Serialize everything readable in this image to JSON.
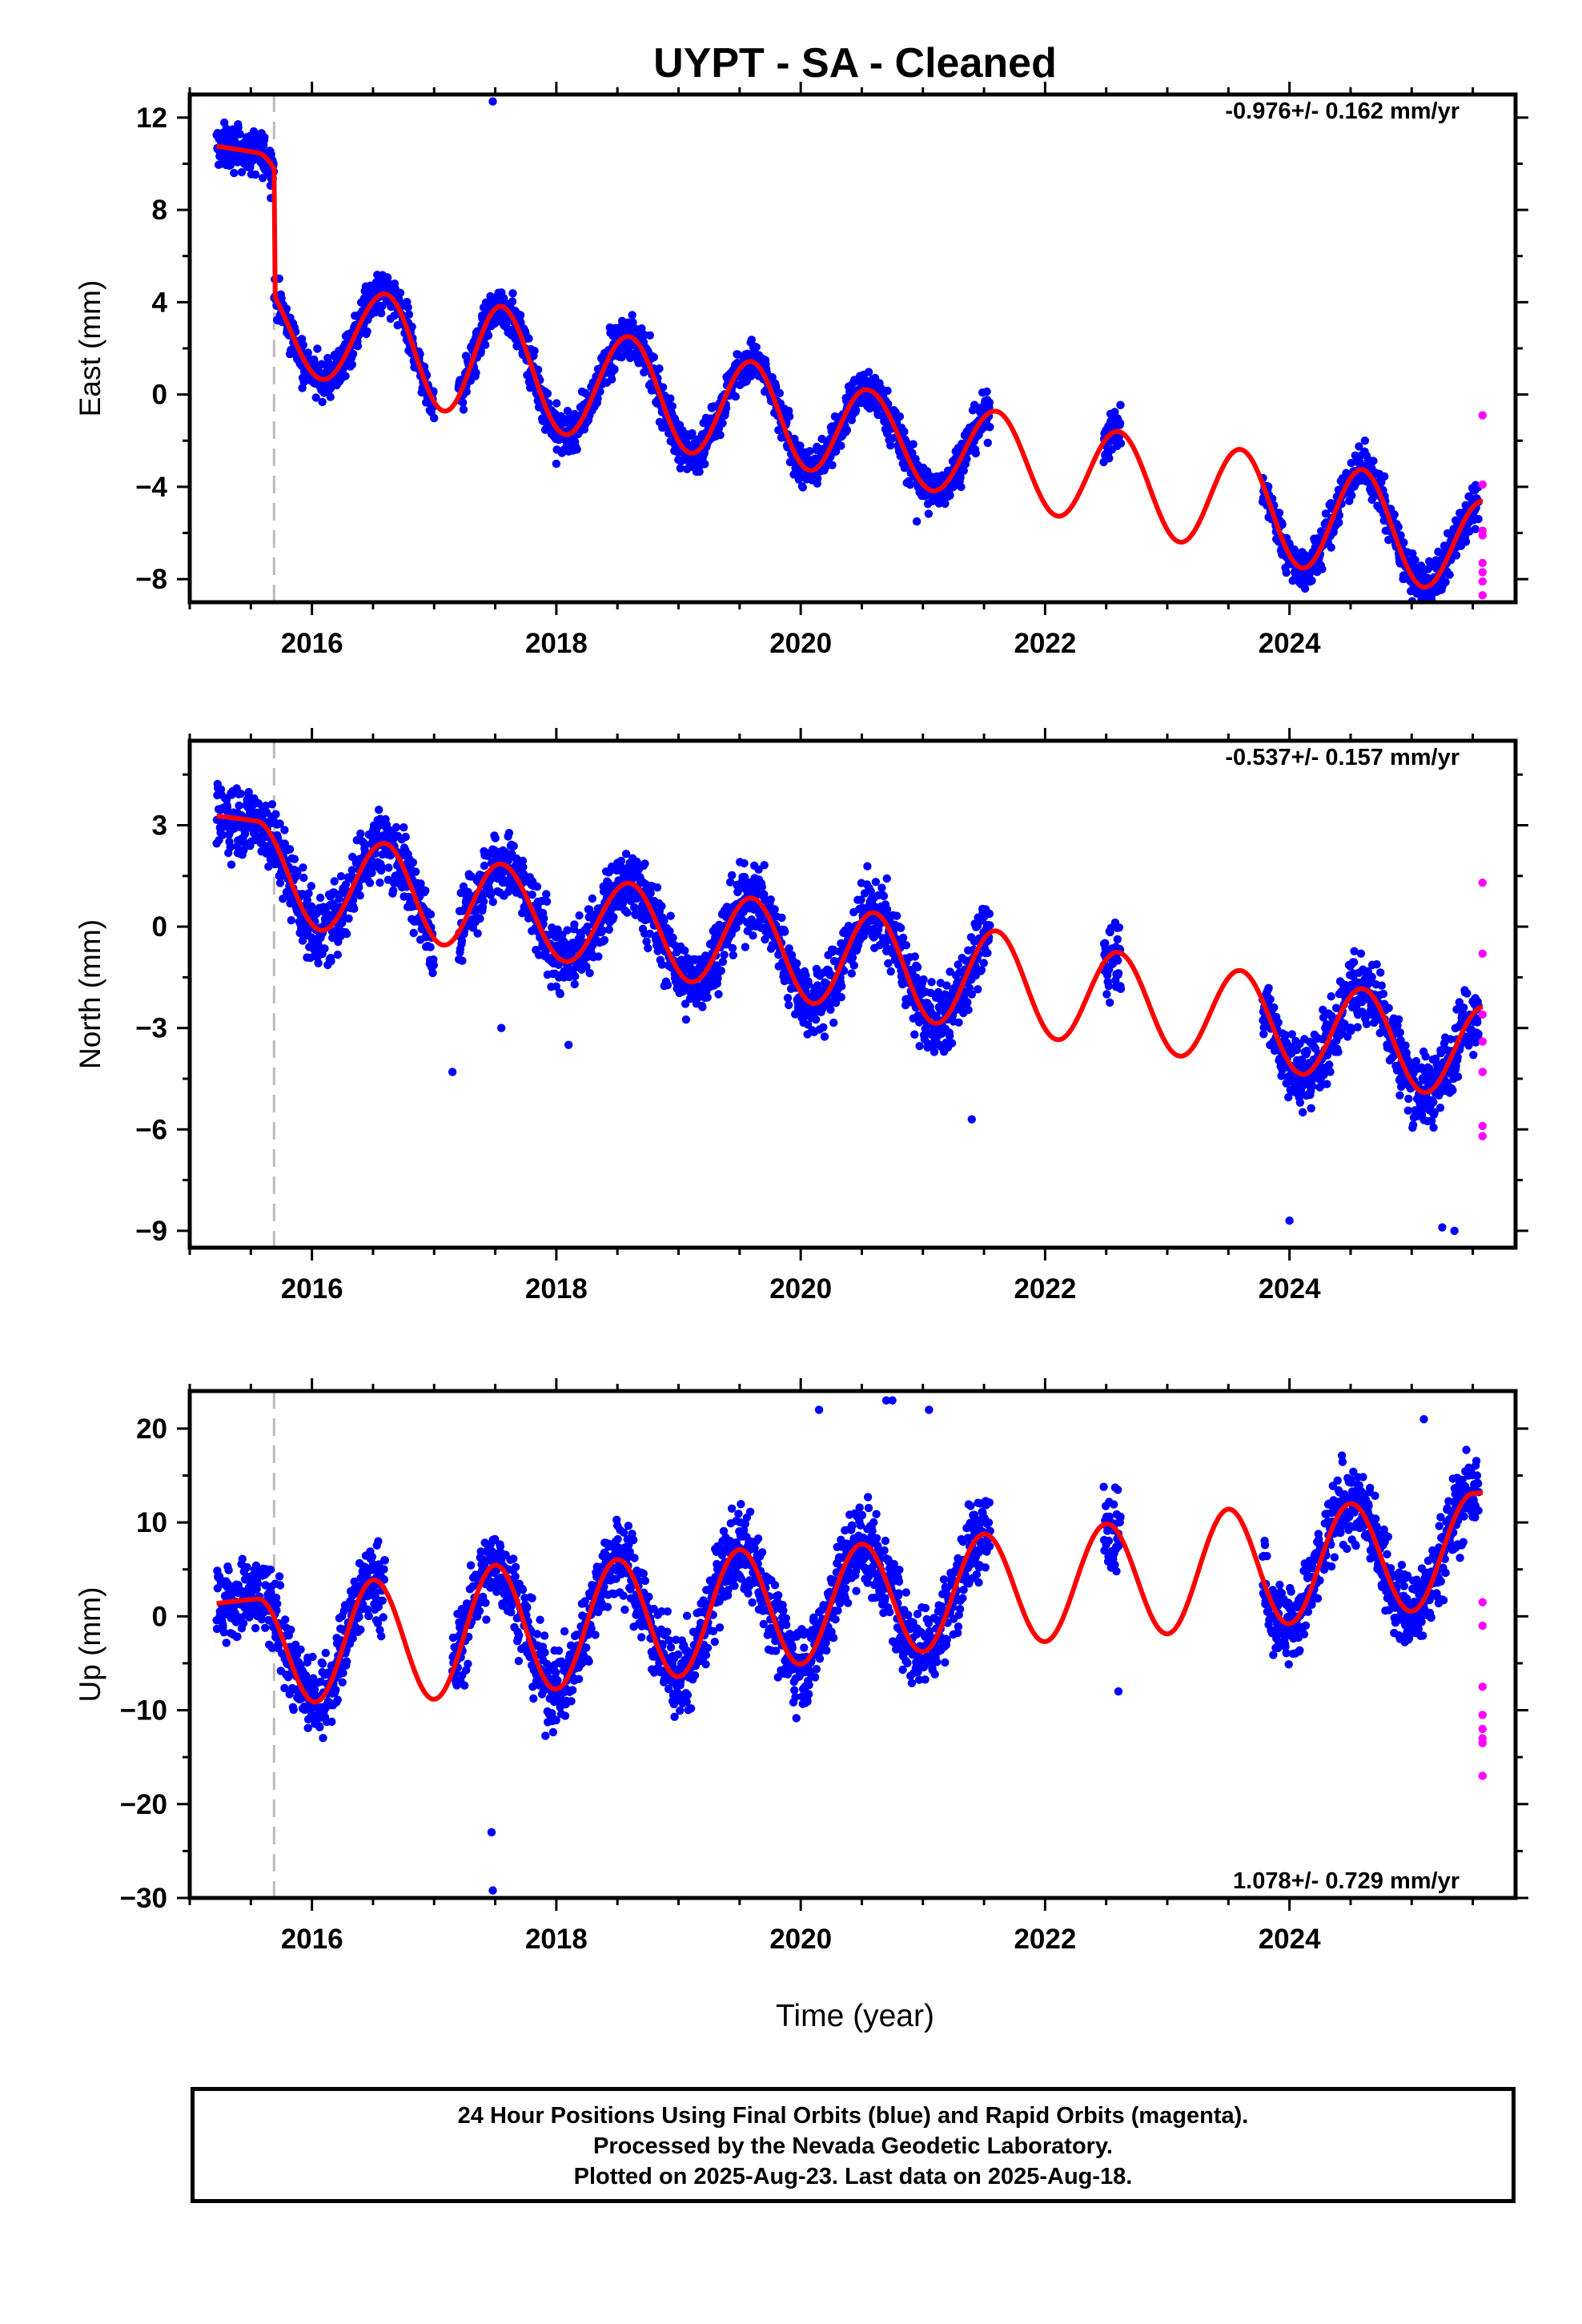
{
  "title": "UYPT  - SA - Cleaned",
  "xlabel": "Time (year)",
  "footer": {
    "line1": "24 Hour Positions Using Final Orbits (blue) and Rapid Orbits (magenta).",
    "line2": "Processed by the Nevada Geodetic Laboratory.",
    "line3": "Plotted on 2025-Aug-23. Last data on 2025-Aug-18."
  },
  "colors": {
    "final": "#0000ff",
    "rapid": "#ff00ff",
    "model": "#ff0000",
    "event": "#bbbbbb"
  },
  "chart_data": [
    {
      "type": "scatter",
      "component": "east",
      "ylabel": "East (mm)",
      "rate_label": "-0.976+/- 0.162 mm/yr",
      "xlim": [
        2015.0,
        2025.85
      ],
      "ylim": [
        -9.0,
        13.0
      ],
      "yticks": [
        -8,
        -4,
        0,
        4,
        8,
        12
      ],
      "xticks": [
        2016,
        2018,
        2020,
        2022,
        2024
      ],
      "xtick_labels": [
        "2016",
        "2018",
        "2020",
        "2022",
        "2024"
      ],
      "event_line_x": 2015.69,
      "data_segments": [
        [
          2015.22,
          2017.0
        ],
        [
          2017.2,
          2021.55
        ],
        [
          2022.48,
          2022.62
        ],
        [
          2023.78,
          2025.55
        ]
      ],
      "trend": {
        "t0": 2015.22,
        "y0": 9.0,
        "rate": -0.976
      },
      "step": {
        "t": 2015.69,
        "size": -5.5
      },
      "seasonal": [
        {
          "t": 2015.55,
          "amp": 1.8
        },
        {
          "t": 2016.6,
          "amp": 2.2
        },
        {
          "t": 2017.55,
          "amp": 2.6
        },
        {
          "t": 2018.6,
          "amp": 2.3
        },
        {
          "t": 2019.6,
          "amp": 2.2
        },
        {
          "t": 2020.55,
          "amp": 1.9
        },
        {
          "t": 2021.6,
          "amp": 2.0
        },
        {
          "t": 2022.6,
          "amp": 2.1
        },
        {
          "t": 2023.6,
          "amp": 2.3
        },
        {
          "t": 2024.6,
          "amp": 2.4
        },
        {
          "t": 2025.6,
          "amp": 2.0
        }
      ],
      "noise": 0.9,
      "outliers": [
        [
          2017.48,
          12.7
        ],
        [
          2018.0,
          -3.0
        ],
        [
          2020.95,
          -5.5
        ]
      ],
      "rapid_points": [
        [
          2025.58,
          -0.9
        ],
        [
          2025.58,
          -3.9
        ],
        [
          2025.58,
          -5.9
        ],
        [
          2025.58,
          -6.1
        ],
        [
          2025.58,
          -7.3
        ],
        [
          2025.58,
          -7.7
        ],
        [
          2025.58,
          -8.1
        ],
        [
          2025.58,
          -8.7
        ]
      ]
    },
    {
      "type": "scatter",
      "component": "north",
      "ylabel": "North (mm)",
      "rate_label": "-0.537+/- 0.157 mm/yr",
      "xlim": [
        2015.0,
        2025.85
      ],
      "ylim": [
        -9.5,
        5.5
      ],
      "yticks": [
        -9,
        -6,
        -3,
        0,
        3
      ],
      "xticks": [
        2016,
        2018,
        2020,
        2022,
        2024
      ],
      "xtick_labels": [
        "2016",
        "2018",
        "2020",
        "2022",
        "2024"
      ],
      "event_line_x": 2015.69,
      "data_segments": [
        [
          2015.22,
          2017.0
        ],
        [
          2017.2,
          2021.55
        ],
        [
          2022.48,
          2022.62
        ],
        [
          2023.78,
          2025.55
        ]
      ],
      "trend": {
        "t0": 2015.22,
        "y0": 1.8,
        "rate": -0.537
      },
      "step": {
        "t": 2015.69,
        "size": 0.0
      },
      "seasonal": [
        {
          "t": 2015.55,
          "amp": 1.5
        },
        {
          "t": 2016.6,
          "amp": 1.4
        },
        {
          "t": 2017.55,
          "amp": 1.3
        },
        {
          "t": 2018.6,
          "amp": 1.3
        },
        {
          "t": 2019.6,
          "amp": 1.4
        },
        {
          "t": 2020.6,
          "amp": 1.5
        },
        {
          "t": 2021.6,
          "amp": 1.5
        },
        {
          "t": 2022.6,
          "amp": 1.4
        },
        {
          "t": 2023.6,
          "amp": 1.4
        },
        {
          "t": 2024.6,
          "amp": 1.4
        },
        {
          "t": 2025.6,
          "amp": 1.4
        }
      ],
      "noise": 1.0,
      "outliers": [
        [
          2017.15,
          -4.3
        ],
        [
          2017.55,
          -3.0
        ],
        [
          2018.1,
          -3.5
        ],
        [
          2021.4,
          -5.7
        ],
        [
          2024.0,
          -8.7
        ],
        [
          2025.25,
          -8.9
        ],
        [
          2025.35,
          -9.0
        ]
      ],
      "rapid_points": [
        [
          2025.58,
          1.3
        ],
        [
          2025.58,
          -0.8
        ],
        [
          2025.58,
          -2.6
        ],
        [
          2025.58,
          -3.4
        ],
        [
          2025.58,
          -4.3
        ],
        [
          2025.58,
          -5.9
        ],
        [
          2025.58,
          -6.2
        ]
      ]
    },
    {
      "type": "scatter",
      "component": "up",
      "ylabel": "Up (mm)",
      "rate_label": "1.078+/- 0.729 mm/yr",
      "xlim": [
        2015.0,
        2025.85
      ],
      "ylim": [
        -30.0,
        24.0
      ],
      "yticks": [
        -30,
        -20,
        -10,
        0,
        10,
        20
      ],
      "xticks": [
        2016,
        2018,
        2020,
        2022,
        2024
      ],
      "xtick_labels": [
        "2016",
        "2018",
        "2020",
        "2022",
        "2024"
      ],
      "event_line_x": 2015.69,
      "data_segments": [
        [
          2015.22,
          2016.6
        ],
        [
          2017.15,
          2021.55
        ],
        [
          2022.48,
          2022.62
        ],
        [
          2023.78,
          2025.55
        ]
      ],
      "trend": {
        "t0": 2015.22,
        "y0": -4.0,
        "rate": 1.078
      },
      "step": {
        "t": 2015.69,
        "size": 0.0
      },
      "seasonal": [
        {
          "t": 2015.55,
          "amp": 5.5
        },
        {
          "t": 2016.5,
          "amp": 6.5
        },
        {
          "t": 2017.5,
          "amp": 7.0
        },
        {
          "t": 2018.5,
          "amp": 6.5
        },
        {
          "t": 2019.5,
          "amp": 6.5
        },
        {
          "t": 2020.5,
          "amp": 6.0
        },
        {
          "t": 2021.5,
          "amp": 6.0
        },
        {
          "t": 2022.5,
          "amp": 6.0
        },
        {
          "t": 2023.5,
          "amp": 6.5
        },
        {
          "t": 2024.5,
          "amp": 6.0
        },
        {
          "t": 2025.5,
          "amp": 6.0
        }
      ],
      "noise": 4.2,
      "outliers": [
        [
          2017.47,
          -23.0
        ],
        [
          2017.48,
          -29.2
        ],
        [
          2020.15,
          22.0
        ],
        [
          2020.7,
          23.0
        ],
        [
          2020.75,
          23.0
        ],
        [
          2021.05,
          22.0
        ],
        [
          2022.6,
          8.8
        ],
        [
          2022.6,
          -8.0
        ],
        [
          2025.1,
          21.0
        ]
      ],
      "rapid_points": [
        [
          2025.58,
          1.5
        ],
        [
          2025.58,
          -1.0
        ],
        [
          2025.58,
          -7.5
        ],
        [
          2025.58,
          -10.5
        ],
        [
          2025.58,
          -12.0
        ],
        [
          2025.58,
          -13.5
        ],
        [
          2025.58,
          -13.0
        ],
        [
          2025.58,
          -17.0
        ]
      ]
    }
  ]
}
